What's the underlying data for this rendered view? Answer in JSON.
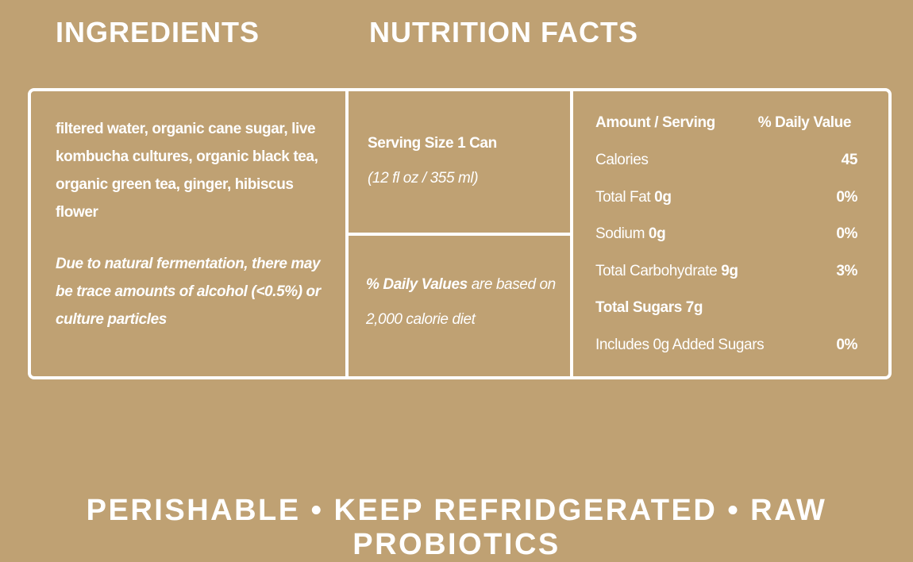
{
  "headings": {
    "ingredients": "INGREDIENTS",
    "nutrition": "NUTRITION FACTS"
  },
  "ingredients": {
    "list": "filtered water, organic cane sugar, live kombucha cultures, organic black tea, organic green tea, ginger, hibiscus flower",
    "note": "Due to natural fermentation, there may be trace amounts of alcohol (<0.5%) or culture particles"
  },
  "serving": {
    "size": "Serving Size 1 Can",
    "volume": "(12 fl oz / 355 ml)"
  },
  "daily_values_note": {
    "emphasis": "% Daily Values",
    "text": "are based on 2,000 calorie diet"
  },
  "nutrition": {
    "header": {
      "amount": "Amount / Serving",
      "daily": "% Daily Value"
    },
    "rows": [
      {
        "label": "Calories",
        "value": "45"
      },
      {
        "label": "Total Fat",
        "amount": "0g",
        "value": "0%"
      },
      {
        "label": "Sodium",
        "amount": "0g",
        "value": "0%"
      },
      {
        "label": "Total Carbohydrate",
        "amount": "9g",
        "value": "3%"
      },
      {
        "label": "Total Sugars",
        "amount": "7g",
        "bold": true
      },
      {
        "label": "Includes 0g Added Sugars",
        "value": "0%"
      }
    ]
  },
  "footer": "PERISHABLE • KEEP REFRIDGERATED • RAW PROBIOTICS"
}
